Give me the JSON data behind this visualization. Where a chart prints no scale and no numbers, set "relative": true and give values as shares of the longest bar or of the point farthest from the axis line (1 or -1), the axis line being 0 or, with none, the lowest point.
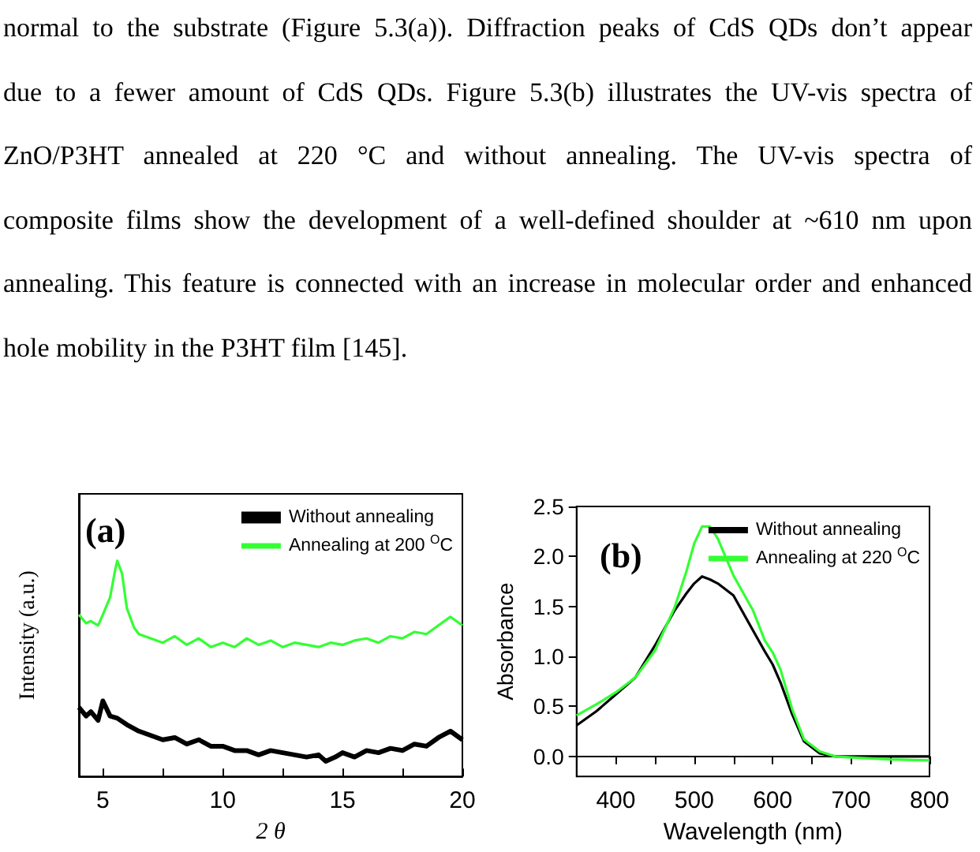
{
  "chart_data": [
    {
      "type": "other",
      "annotations": [
        "normal to the substrate (Figure 5.3(a)). Diffraction peaks of CdS QDs don’t appear",
        "due to a fewer amount of CdS QDs. Figure 5.3(b) illustrates the UV-vis spectra of",
        "ZnO/P3HT annealed at 220 °C and without annealing. The UV-vis spectra of",
        "composite films show the development of a well-defined shoulder at ~610 nm upon",
        "annealing. This feature is connected with an increase in molecular order and enhanced",
        "hole mobility in the P3HT film [145]."
      ]
    },
    {
      "type": "line",
      "relative": true,
      "xlabel": "2 θ",
      "ylabel": "Intensity (a.u.)",
      "annotations": [
        "(a)"
      ],
      "legend": "top right",
      "xlim": [
        4,
        20
      ],
      "xticks": [
        5,
        {
          "value": 7.5,
          "label": null
        },
        10,
        {
          "value": 12.5,
          "label": null
        },
        15,
        {
          "value": 17.5,
          "label": null
        },
        20
      ],
      "series": [
        {
          "name": "Without annealing",
          "color": "#000000",
          "x": [
            4,
            4.3,
            4.5,
            4.8,
            5,
            5.3,
            5.6,
            6,
            6.5,
            7,
            7.5,
            8,
            8.5,
            9,
            9.5,
            10,
            10.5,
            11,
            11.5,
            12,
            12.5,
            13,
            13.5,
            14,
            14.3,
            14.7,
            15,
            15.5,
            16,
            16.5,
            17,
            17.5,
            18,
            18.5,
            19,
            19.5,
            20
          ],
          "values": [
            0.32,
            0.28,
            0.3,
            0.26,
            0.35,
            0.28,
            0.27,
            0.24,
            0.21,
            0.19,
            0.17,
            0.18,
            0.15,
            0.17,
            0.14,
            0.14,
            0.12,
            0.12,
            0.1,
            0.12,
            0.11,
            0.1,
            0.09,
            0.1,
            0.07,
            0.09,
            0.11,
            0.09,
            0.12,
            0.11,
            0.13,
            0.12,
            0.15,
            0.14,
            0.18,
            0.21,
            0.17
          ]
        },
        {
          "name": "Annealing at 200 $^{O}$C",
          "color": "#33ff33",
          "x": [
            4,
            4.3,
            4.5,
            4.8,
            5,
            5.3,
            5.5,
            5.6,
            5.8,
            6,
            6.3,
            6.5,
            7,
            7.5,
            8,
            8.5,
            9,
            9.5,
            10,
            10.5,
            11,
            11.5,
            12,
            12.5,
            13,
            13.5,
            14,
            14.5,
            15,
            15.5,
            16,
            16.5,
            17,
            17.5,
            18,
            18.5,
            19,
            19.5,
            20
          ],
          "values": [
            0.75,
            0.71,
            0.72,
            0.7,
            0.75,
            0.83,
            0.95,
            1.0,
            0.94,
            0.78,
            0.69,
            0.66,
            0.64,
            0.62,
            0.65,
            0.61,
            0.64,
            0.6,
            0.62,
            0.6,
            0.64,
            0.61,
            0.63,
            0.6,
            0.62,
            0.61,
            0.6,
            0.62,
            0.61,
            0.63,
            0.64,
            0.62,
            0.65,
            0.64,
            0.67,
            0.66,
            0.7,
            0.74,
            0.7
          ]
        }
      ]
    },
    {
      "type": "line",
      "xlabel": "Wavelength (nm)",
      "ylabel": "Absorbance",
      "annotations": [
        "(b)"
      ],
      "legend": "top right",
      "xlim": [
        350,
        800
      ],
      "xticks": [
        400,
        {
          "value": 450,
          "label": null
        },
        500,
        {
          "value": 550,
          "label": null
        },
        600,
        {
          "value": 650,
          "label": null
        },
        700,
        {
          "value": 750,
          "label": null
        },
        800
      ],
      "ylim": [
        -0.2,
        2.5
      ],
      "yticks": [
        {
          "value": 0,
          "label": "0.0"
        },
        0.5,
        {
          "value": 1,
          "label": "1.0"
        },
        1.5,
        {
          "value": 2,
          "label": "2.0"
        },
        2.5
      ],
      "series": [
        {
          "name": "Without annealing",
          "color": "#000000",
          "x": [
            350,
            375,
            400,
            425,
            450,
            475,
            490,
            500,
            510,
            520,
            530,
            550,
            575,
            590,
            600,
            610,
            625,
            640,
            660,
            680,
            700,
            750,
            800
          ],
          "values": [
            0.31,
            0.45,
            0.62,
            0.79,
            1.11,
            1.46,
            1.63,
            1.73,
            1.8,
            1.77,
            1.73,
            1.61,
            1.26,
            1.05,
            0.92,
            0.74,
            0.42,
            0.15,
            0.03,
            0.0,
            0.0,
            0.0,
            0.0
          ]
        },
        {
          "name": "Annealing at 220 $^{O}$C",
          "color": "#33ff33",
          "x": [
            350,
            375,
            400,
            425,
            450,
            475,
            490,
            500,
            510,
            520,
            530,
            550,
            575,
            590,
            600,
            610,
            625,
            640,
            660,
            680,
            700,
            750,
            800
          ],
          "values": [
            0.41,
            0.52,
            0.64,
            0.79,
            1.06,
            1.49,
            1.85,
            2.13,
            2.3,
            2.3,
            2.18,
            1.81,
            1.46,
            1.16,
            1.04,
            0.87,
            0.47,
            0.17,
            0.05,
            0.0,
            -0.01,
            -0.03,
            -0.04
          ]
        }
      ]
    }
  ]
}
